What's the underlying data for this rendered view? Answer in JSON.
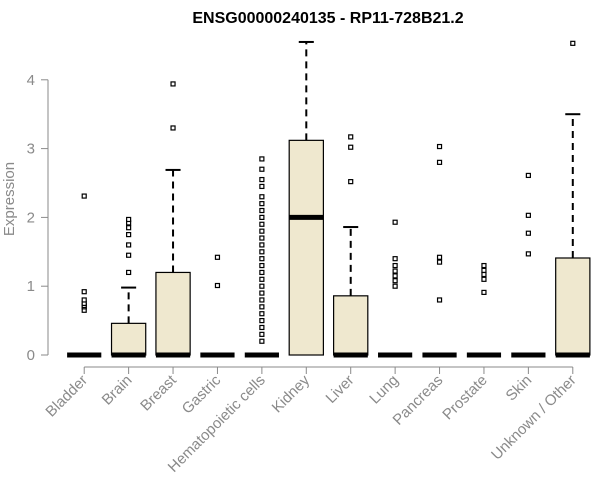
{
  "chart_data": {
    "type": "boxplot",
    "title": "ENSG00000240135 - RP11-728B21.2",
    "xlabel": "",
    "ylabel": "Expression",
    "ylim": [
      0,
      4.6
    ],
    "yticks": [
      0,
      1,
      2,
      3,
      4
    ],
    "grid": false,
    "legend": "none",
    "box_fill": "#efe8cf",
    "categories": [
      "Bladder",
      "Brain",
      "Breast",
      "Gastric",
      "Hematopoietic cells",
      "Kidney",
      "Liver",
      "Lung",
      "Pancreas",
      "Prostate",
      "Skin",
      "Unknown / Other"
    ],
    "boxes": [
      {
        "name": "Bladder",
        "min": 0,
        "q1": 0,
        "median": 0,
        "q3": 0,
        "max": 0,
        "outliers": [
          0.65,
          0.7,
          0.72,
          0.75,
          0.8,
          0.92,
          2.31
        ]
      },
      {
        "name": "Brain",
        "min": 0,
        "q1": 0,
        "median": 0,
        "q3": 0.46,
        "max": 0.98,
        "outliers": [
          1.2,
          1.45,
          1.6,
          1.75,
          1.85,
          1.92,
          1.97
        ]
      },
      {
        "name": "Breast",
        "min": 0,
        "q1": 0,
        "median": 0,
        "q3": 1.2,
        "max": 2.69,
        "outliers": [
          3.3,
          3.94
        ]
      },
      {
        "name": "Gastric",
        "min": 0,
        "q1": 0,
        "median": 0,
        "q3": 0,
        "max": 0,
        "outliers": [
          1.01,
          1.42
        ]
      },
      {
        "name": "Hematopoietic cells",
        "min": 0,
        "q1": 0,
        "median": 0,
        "q3": 0,
        "max": 0,
        "outliers": [
          0.2,
          0.3,
          0.4,
          0.5,
          0.6,
          0.7,
          0.8,
          0.9,
          1.0,
          1.1,
          1.2,
          1.3,
          1.4,
          1.5,
          1.6,
          1.7,
          1.8,
          1.9,
          2.0,
          2.1,
          2.2,
          2.3,
          2.45,
          2.55,
          2.7,
          2.85
        ]
      },
      {
        "name": "Kidney",
        "min": 0,
        "q1": 0,
        "median": 2.0,
        "q3": 3.12,
        "max": 4.55,
        "outliers": []
      },
      {
        "name": "Liver",
        "min": 0,
        "q1": 0,
        "median": 0,
        "q3": 0.86,
        "max": 1.86,
        "outliers": [
          2.52,
          3.02,
          3.17
        ]
      },
      {
        "name": "Lung",
        "min": 0,
        "q1": 0,
        "median": 0,
        "q3": 0,
        "max": 0,
        "outliers": [
          1.0,
          1.08,
          1.15,
          1.22,
          1.3,
          1.4,
          1.93
        ]
      },
      {
        "name": "Pancreas",
        "min": 0,
        "q1": 0,
        "median": 0,
        "q3": 0,
        "max": 0,
        "outliers": [
          0.8,
          1.35,
          1.42,
          2.8,
          3.03
        ]
      },
      {
        "name": "Prostate",
        "min": 0,
        "q1": 0,
        "median": 0,
        "q3": 0,
        "max": 0,
        "outliers": [
          0.91,
          1.1,
          1.17,
          1.23,
          1.3
        ]
      },
      {
        "name": "Skin",
        "min": 0,
        "q1": 0,
        "median": 0,
        "q3": 0,
        "max": 0,
        "outliers": [
          1.47,
          1.77,
          2.03,
          2.61
        ]
      },
      {
        "name": "Unknown / Other",
        "min": 0,
        "q1": 0,
        "median": 0,
        "q3": 1.41,
        "max": 3.5,
        "outliers": [
          4.53
        ]
      }
    ]
  }
}
